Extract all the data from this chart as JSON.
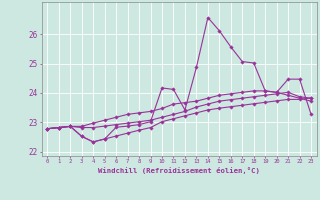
{
  "xlabel": "Windchill (Refroidissement éolien,°C)",
  "bg_color": "#cce8e0",
  "line_color": "#993399",
  "xlim_min": -0.5,
  "xlim_max": 23.5,
  "ylim_min": 21.85,
  "ylim_max": 27.1,
  "yticks": [
    22,
    23,
    24,
    25,
    26
  ],
  "xticks": [
    0,
    1,
    2,
    3,
    4,
    5,
    6,
    7,
    8,
    9,
    10,
    11,
    12,
    13,
    14,
    15,
    16,
    17,
    18,
    19,
    20,
    21,
    22,
    23
  ],
  "series": [
    [
      22.78,
      22.82,
      22.86,
      22.52,
      22.33,
      22.43,
      22.53,
      22.63,
      22.73,
      22.82,
      23.02,
      23.12,
      23.22,
      23.32,
      23.42,
      23.48,
      23.53,
      23.58,
      23.63,
      23.68,
      23.73,
      23.78,
      23.78,
      23.83
    ],
    [
      22.78,
      22.82,
      22.86,
      22.82,
      22.82,
      22.87,
      22.92,
      22.97,
      23.02,
      23.07,
      23.17,
      23.27,
      23.37,
      23.52,
      23.62,
      23.72,
      23.77,
      23.82,
      23.87,
      23.92,
      23.97,
      24.02,
      23.87,
      23.82
    ],
    [
      22.78,
      22.82,
      22.86,
      22.86,
      22.97,
      23.07,
      23.17,
      23.27,
      23.32,
      23.37,
      23.47,
      23.62,
      23.67,
      23.72,
      23.82,
      23.92,
      23.97,
      24.02,
      24.07,
      24.07,
      24.02,
      23.92,
      23.82,
      23.72
    ],
    [
      22.78,
      22.82,
      22.86,
      22.52,
      22.33,
      22.43,
      22.83,
      22.87,
      22.92,
      23.02,
      24.17,
      24.12,
      23.42,
      24.87,
      26.57,
      26.12,
      25.57,
      25.07,
      25.02,
      24.07,
      24.02,
      24.47,
      24.47,
      23.27
    ]
  ]
}
